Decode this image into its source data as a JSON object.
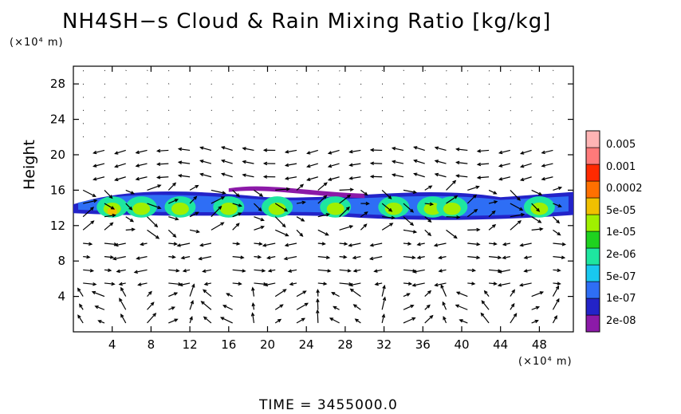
{
  "chart_data": {
    "type": "heatmap",
    "title": "NH4SH−s Cloud & Rain Mixing Ratio [kg/kg]",
    "ylabel": "Height",
    "y_unit": "(×10⁴ m)",
    "x_unit": "(×10⁴ m)",
    "x_ticks": [
      4,
      8,
      12,
      16,
      20,
      24,
      28,
      32,
      36,
      40,
      44,
      48
    ],
    "y_ticks": [
      4,
      8,
      12,
      16,
      20,
      24,
      28
    ],
    "xlim": [
      0,
      51.5
    ],
    "ylim": [
      0,
      30
    ],
    "footer": "TIME = 3455000.0",
    "colorbar": {
      "labels": [
        "0.005",
        "0.001",
        "0.0002",
        "5e-05",
        "1e-05",
        "2e-06",
        "5e-07",
        "1e-07",
        "2e-08"
      ],
      "colors": [
        "#8c1aa8",
        "#2323c8",
        "#2e6ef5",
        "#19c8f0",
        "#1ee6a0",
        "#1fd21f",
        "#a0f000",
        "#f0c000",
        "#ff7000",
        "#ff2a00",
        "#ff7a7a",
        "#ffb4b4"
      ]
    },
    "cloud_layer": {
      "level_kg_per_kg_peak": "2e-05",
      "x_range": [
        0,
        51.5
      ],
      "z_range": [
        12,
        16.5
      ],
      "core_peaks_x": [
        4,
        7,
        11,
        16,
        21,
        27,
        33,
        37,
        39,
        48
      ]
    },
    "wind_vectors": "present"
  }
}
